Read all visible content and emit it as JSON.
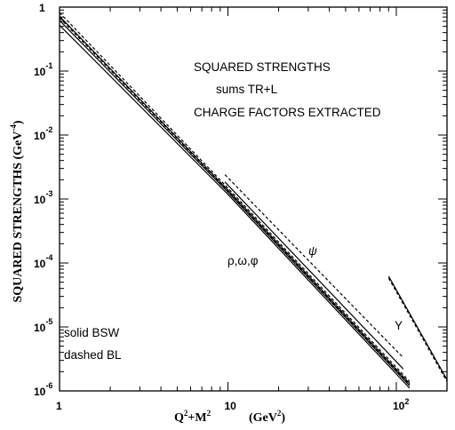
{
  "chart_data": {
    "type": "line",
    "xscale": "log",
    "yscale": "log",
    "xlim": [
      1,
      200
    ],
    "ylim": [
      1e-06,
      1
    ],
    "ylabel": "SQUARED STRENGTHS (GeV",
    "ylabel_exp": "-4",
    "ylabel_tail": ")",
    "xlabel_parts": [
      "Q",
      "2",
      "+M",
      "2"
    ],
    "xlabel_unit_parts": [
      "(GeV",
      "2",
      ")"
    ],
    "x_ticks": [
      {
        "value": 1,
        "base": "1",
        "exp": ""
      },
      {
        "value": 10,
        "base": "10",
        "exp": ""
      },
      {
        "value": 100,
        "base": "10",
        "exp": "2"
      }
    ],
    "y_ticks": [
      {
        "value": 1,
        "base": "1",
        "exp": ""
      },
      {
        "value": 0.1,
        "base": "10",
        "exp": "-1"
      },
      {
        "value": 0.01,
        "base": "10",
        "exp": "-2"
      },
      {
        "value": 0.001,
        "base": "10",
        "exp": "-3"
      },
      {
        "value": 0.0001,
        "base": "10",
        "exp": "-4"
      },
      {
        "value": 1e-05,
        "base": "10",
        "exp": "-5"
      },
      {
        "value": 1e-06,
        "base": "10",
        "exp": "-6"
      }
    ],
    "annotations": {
      "title_line1": "SQUARED STRENGTHS",
      "title_line2": "sums TR+L",
      "title_line3": "CHARGE FACTORS EXTRACTED",
      "light_label": "ρ,ω,φ",
      "psi_label": "ψ",
      "upsilon_label": "Υ",
      "legend_solid": "solid BSW",
      "legend_dashed": "dashed BL"
    },
    "series": [
      {
        "group": "rho-omega-phi",
        "style": "solid",
        "points": [
          [
            1,
            0.52
          ],
          [
            10,
            0.00118
          ],
          [
            120,
            1.1e-06
          ]
        ]
      },
      {
        "group": "rho-omega-phi",
        "style": "solid",
        "points": [
          [
            1,
            0.62
          ],
          [
            10,
            0.00128
          ],
          [
            120,
            1.2e-06
          ]
        ]
      },
      {
        "group": "rho-omega-phi",
        "style": "solid",
        "points": [
          [
            1,
            0.72
          ],
          [
            10,
            0.00138
          ],
          [
            120,
            1.3e-06
          ]
        ]
      },
      {
        "group": "rho-omega-phi",
        "style": "dashed",
        "points": [
          [
            1,
            0.68
          ],
          [
            10,
            0.00135
          ],
          [
            120,
            1.25e-06
          ]
        ]
      },
      {
        "group": "rho-omega-phi",
        "style": "dashed",
        "points": [
          [
            1,
            0.82
          ],
          [
            10,
            0.00148
          ],
          [
            120,
            1.4e-06
          ]
        ]
      },
      {
        "group": "psi",
        "style": "solid",
        "points": [
          [
            9.6,
            0.00185
          ],
          [
            110,
            2.2e-06
          ]
        ]
      },
      {
        "group": "psi",
        "style": "dashed",
        "points": [
          [
            9.6,
            0.0024
          ],
          [
            110,
            3.3e-06
          ]
        ]
      },
      {
        "group": "upsilon",
        "style": "solid",
        "points": [
          [
            90,
            6.2e-05
          ],
          [
            200,
            1.5e-06
          ]
        ]
      },
      {
        "group": "upsilon",
        "style": "dashed",
        "points": [
          [
            90,
            5.8e-05
          ],
          [
            200,
            1.4e-06
          ]
        ]
      }
    ]
  }
}
